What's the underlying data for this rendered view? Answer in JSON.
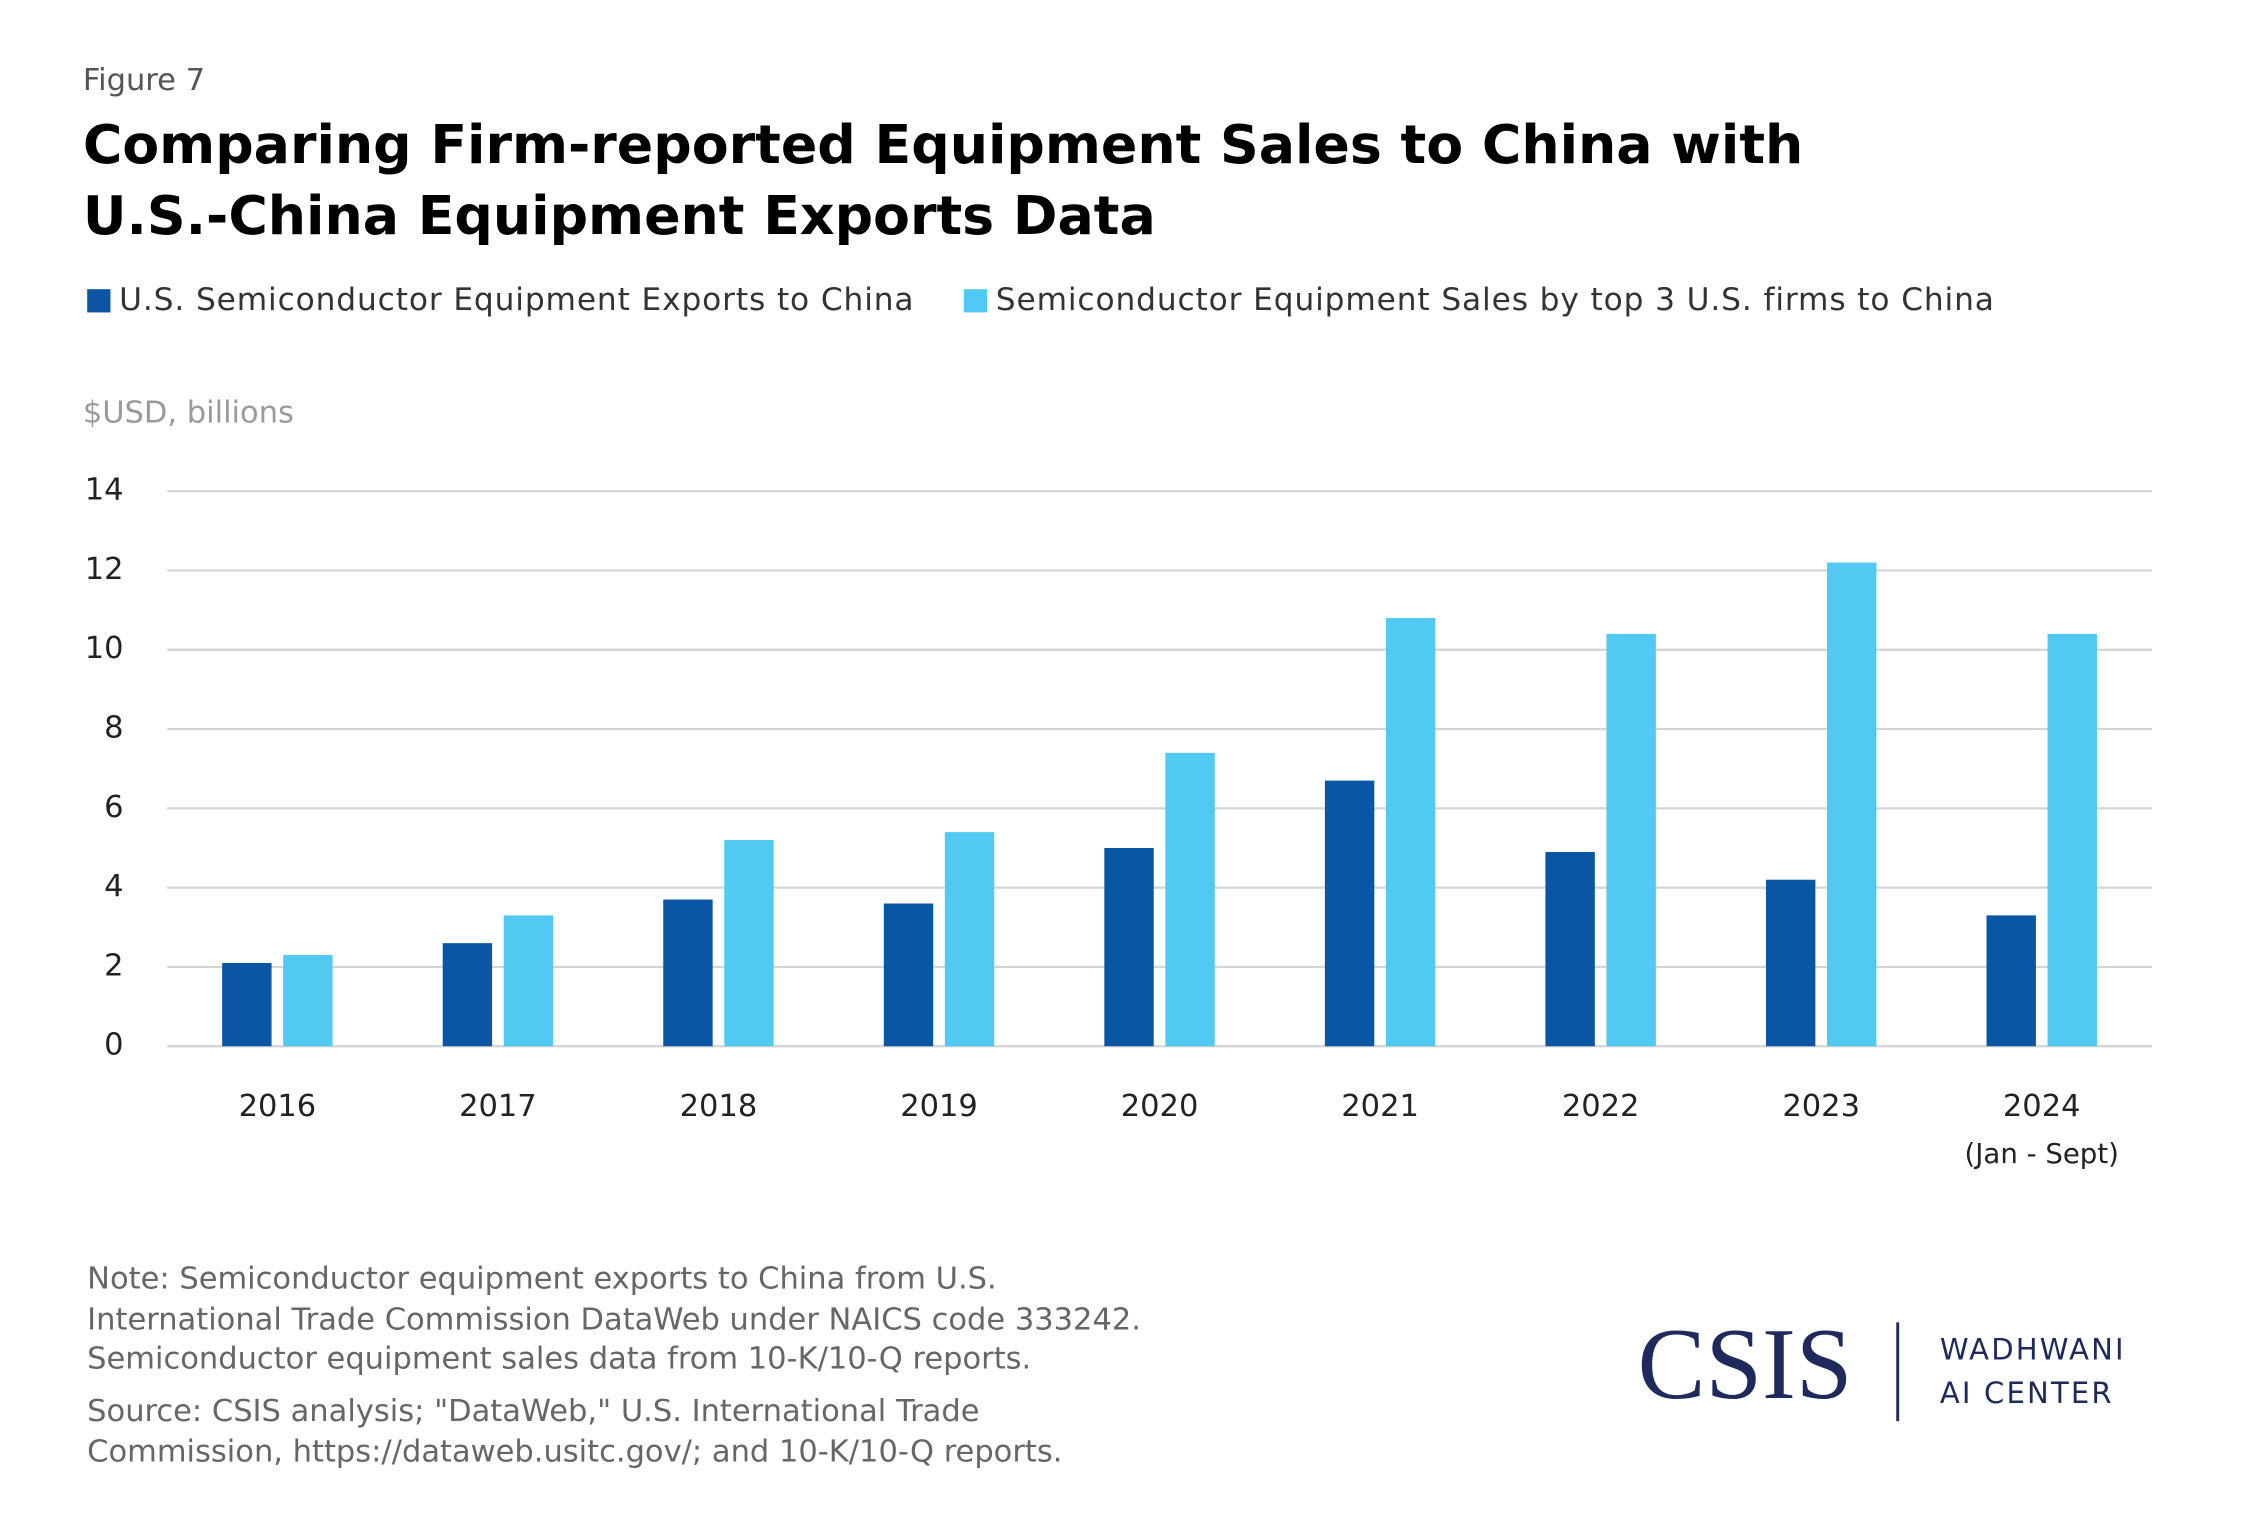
{
  "chart_data": {
    "type": "bar",
    "figure_label": "Figure 7",
    "title": [
      "Comparing Firm-reported Equipment Sales to China with",
      "U.S.-China Equipment Exports Data"
    ],
    "y_label": "$USD, billions",
    "categories": [
      "2016",
      "2017",
      "2018",
      "2019",
      "2020",
      "2021",
      "2022",
      "2023",
      "2024"
    ],
    "category_sublabels": [
      null,
      null,
      null,
      null,
      null,
      null,
      null,
      null,
      "(Jan - Sept)"
    ],
    "series": [
      {
        "name": "U.S. Semiconductor Equipment Exports to China",
        "color": "#0b56a4",
        "values": [
          2.1,
          2.6,
          3.7,
          3.6,
          5.0,
          6.7,
          4.9,
          4.2,
          3.3
        ]
      },
      {
        "name": "Semiconductor Equipment Sales by top 3 U.S. firms to China",
        "color": "#52c9f2",
        "values": [
          2.3,
          3.3,
          5.2,
          5.4,
          7.4,
          10.8,
          10.4,
          12.2,
          10.4
        ]
      }
    ],
    "ylim": [
      0,
      14
    ],
    "yticks": [
      0,
      2,
      4,
      6,
      8,
      10,
      12,
      14
    ],
    "grid": true,
    "legend": "top-left"
  },
  "footer": {
    "note": [
      "Note: Semiconductor equipment exports to China from U.S.",
      "International Trade Commission DataWeb under NAICS code 333242.",
      "Semiconductor equipment sales data from 10-K/10-Q reports."
    ],
    "source": [
      "Source: CSIS analysis; \"DataWeb,\" U.S. International Trade",
      "Commission, https://dataweb.usitc.gov/; and 10-K/10-Q reports."
    ],
    "logo": "CSIS",
    "center": [
      "WADHWANI",
      "AI CENTER"
    ]
  }
}
